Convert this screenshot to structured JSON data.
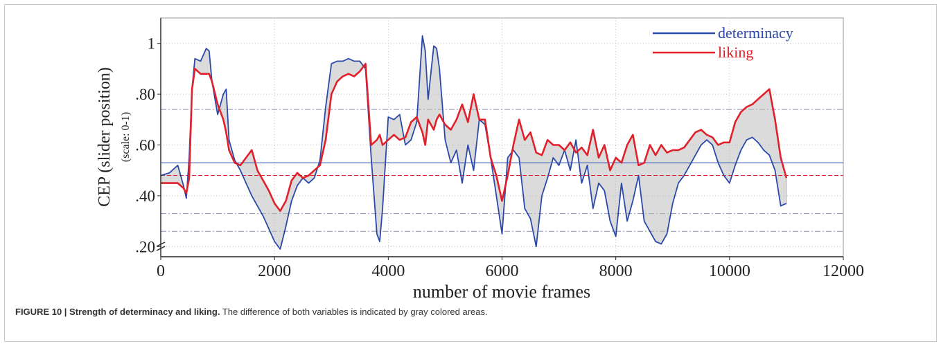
{
  "chart_data": {
    "type": "line",
    "ylabel": "CEP (slider position)",
    "ylabel_sub": "(scale: 0-1)",
    "xlabel": "number of movie frames",
    "xlim": [
      0,
      12000
    ],
    "ylim": [
      0.16,
      1.1
    ],
    "x_ticks": [
      0,
      2000,
      4000,
      6000,
      8000,
      10000,
      12000
    ],
    "x_tick_labels": [
      "0",
      "2000",
      "4000",
      "6000",
      "8000",
      "10000",
      "12000"
    ],
    "y_ticks": [
      0.2,
      0.4,
      0.6,
      0.8,
      1.0
    ],
    "y_tick_labels": [
      ".20",
      ".40",
      ".60",
      ".80",
      "1"
    ],
    "grid": true,
    "legend_position": "top-right",
    "fill_between": true,
    "fill_color": "#bdbdbd",
    "reference_lines": [
      {
        "series": "determinacy",
        "y": 0.53
      },
      {
        "series": "liking",
        "y": 0.48
      }
    ],
    "x": [
      0,
      150,
      300,
      400,
      450,
      500,
      550,
      600,
      700,
      800,
      850,
      900,
      1000,
      1100,
      1150,
      1200,
      1300,
      1400,
      1500,
      1600,
      1700,
      1800,
      1900,
      2000,
      2100,
      2200,
      2300,
      2400,
      2500,
      2600,
      2700,
      2800,
      2900,
      3000,
      3100,
      3200,
      3300,
      3400,
      3500,
      3600,
      3700,
      3800,
      3850,
      3900,
      4000,
      4100,
      4200,
      4300,
      4400,
      4500,
      4600,
      4650,
      4700,
      4800,
      4850,
      4900,
      5000,
      5100,
      5200,
      5300,
      5400,
      5500,
      5600,
      5700,
      5800,
      5900,
      6000,
      6100,
      6200,
      6300,
      6400,
      6500,
      6600,
      6700,
      6800,
      6900,
      7000,
      7100,
      7200,
      7300,
      7400,
      7500,
      7600,
      7700,
      7800,
      7900,
      8000,
      8100,
      8200,
      8300,
      8400,
      8500,
      8600,
      8700,
      8800,
      8900,
      9000,
      9100,
      9200,
      9300,
      9400,
      9500,
      9600,
      9700,
      9800,
      9900,
      10000,
      10100,
      10200,
      10300,
      10400,
      10500,
      10600,
      10700,
      10800,
      10900,
      11000
    ],
    "series": [
      {
        "name": "determinacy",
        "color": "#2b49a8",
        "values": [
          0.48,
          0.49,
          0.52,
          0.44,
          0.39,
          0.55,
          0.82,
          0.94,
          0.93,
          0.98,
          0.97,
          0.85,
          0.72,
          0.8,
          0.82,
          0.62,
          0.54,
          0.5,
          0.45,
          0.4,
          0.36,
          0.32,
          0.27,
          0.22,
          0.19,
          0.28,
          0.38,
          0.44,
          0.47,
          0.45,
          0.47,
          0.54,
          0.75,
          0.92,
          0.93,
          0.93,
          0.94,
          0.93,
          0.93,
          0.9,
          0.55,
          0.25,
          0.22,
          0.35,
          0.71,
          0.7,
          0.72,
          0.6,
          0.62,
          0.69,
          1.03,
          0.97,
          0.78,
          0.99,
          0.98,
          0.9,
          0.62,
          0.53,
          0.58,
          0.45,
          0.6,
          0.5,
          0.7,
          0.68,
          0.55,
          0.4,
          0.25,
          0.55,
          0.58,
          0.55,
          0.35,
          0.31,
          0.2,
          0.4,
          0.47,
          0.55,
          0.52,
          0.58,
          0.5,
          0.62,
          0.45,
          0.52,
          0.35,
          0.45,
          0.42,
          0.3,
          0.24,
          0.45,
          0.3,
          0.38,
          0.48,
          0.3,
          0.26,
          0.22,
          0.21,
          0.25,
          0.37,
          0.45,
          0.48,
          0.52,
          0.56,
          0.6,
          0.62,
          0.6,
          0.53,
          0.48,
          0.45,
          0.52,
          0.58,
          0.62,
          0.63,
          0.61,
          0.58,
          0.56,
          0.5,
          0.36,
          0.37
        ]
      },
      {
        "name": "liking",
        "color": "#e0202a",
        "values": [
          0.45,
          0.45,
          0.45,
          0.43,
          0.41,
          0.47,
          0.82,
          0.9,
          0.88,
          0.88,
          0.88,
          0.85,
          0.76,
          0.7,
          0.65,
          0.58,
          0.53,
          0.52,
          0.55,
          0.58,
          0.5,
          0.46,
          0.42,
          0.37,
          0.34,
          0.38,
          0.46,
          0.49,
          0.47,
          0.48,
          0.5,
          0.52,
          0.62,
          0.8,
          0.85,
          0.87,
          0.88,
          0.87,
          0.89,
          0.92,
          0.6,
          0.62,
          0.64,
          0.6,
          0.62,
          0.64,
          0.62,
          0.63,
          0.69,
          0.71,
          0.65,
          0.6,
          0.7,
          0.66,
          0.7,
          0.72,
          0.68,
          0.66,
          0.7,
          0.76,
          0.69,
          0.8,
          0.7,
          0.7,
          0.55,
          0.48,
          0.38,
          0.48,
          0.6,
          0.7,
          0.62,
          0.65,
          0.57,
          0.56,
          0.62,
          0.6,
          0.6,
          0.58,
          0.61,
          0.57,
          0.59,
          0.56,
          0.66,
          0.55,
          0.6,
          0.5,
          0.55,
          0.53,
          0.6,
          0.64,
          0.52,
          0.53,
          0.6,
          0.56,
          0.6,
          0.57,
          0.58,
          0.58,
          0.59,
          0.62,
          0.65,
          0.66,
          0.64,
          0.63,
          0.6,
          0.61,
          0.61,
          0.69,
          0.73,
          0.75,
          0.76,
          0.78,
          0.8,
          0.82,
          0.7,
          0.55,
          0.47
        ]
      }
    ]
  },
  "caption": {
    "label": "FIGURE 10 | Strength of determinacy and liking.",
    "text": " The difference of both variables is indicated by gray colored areas."
  }
}
